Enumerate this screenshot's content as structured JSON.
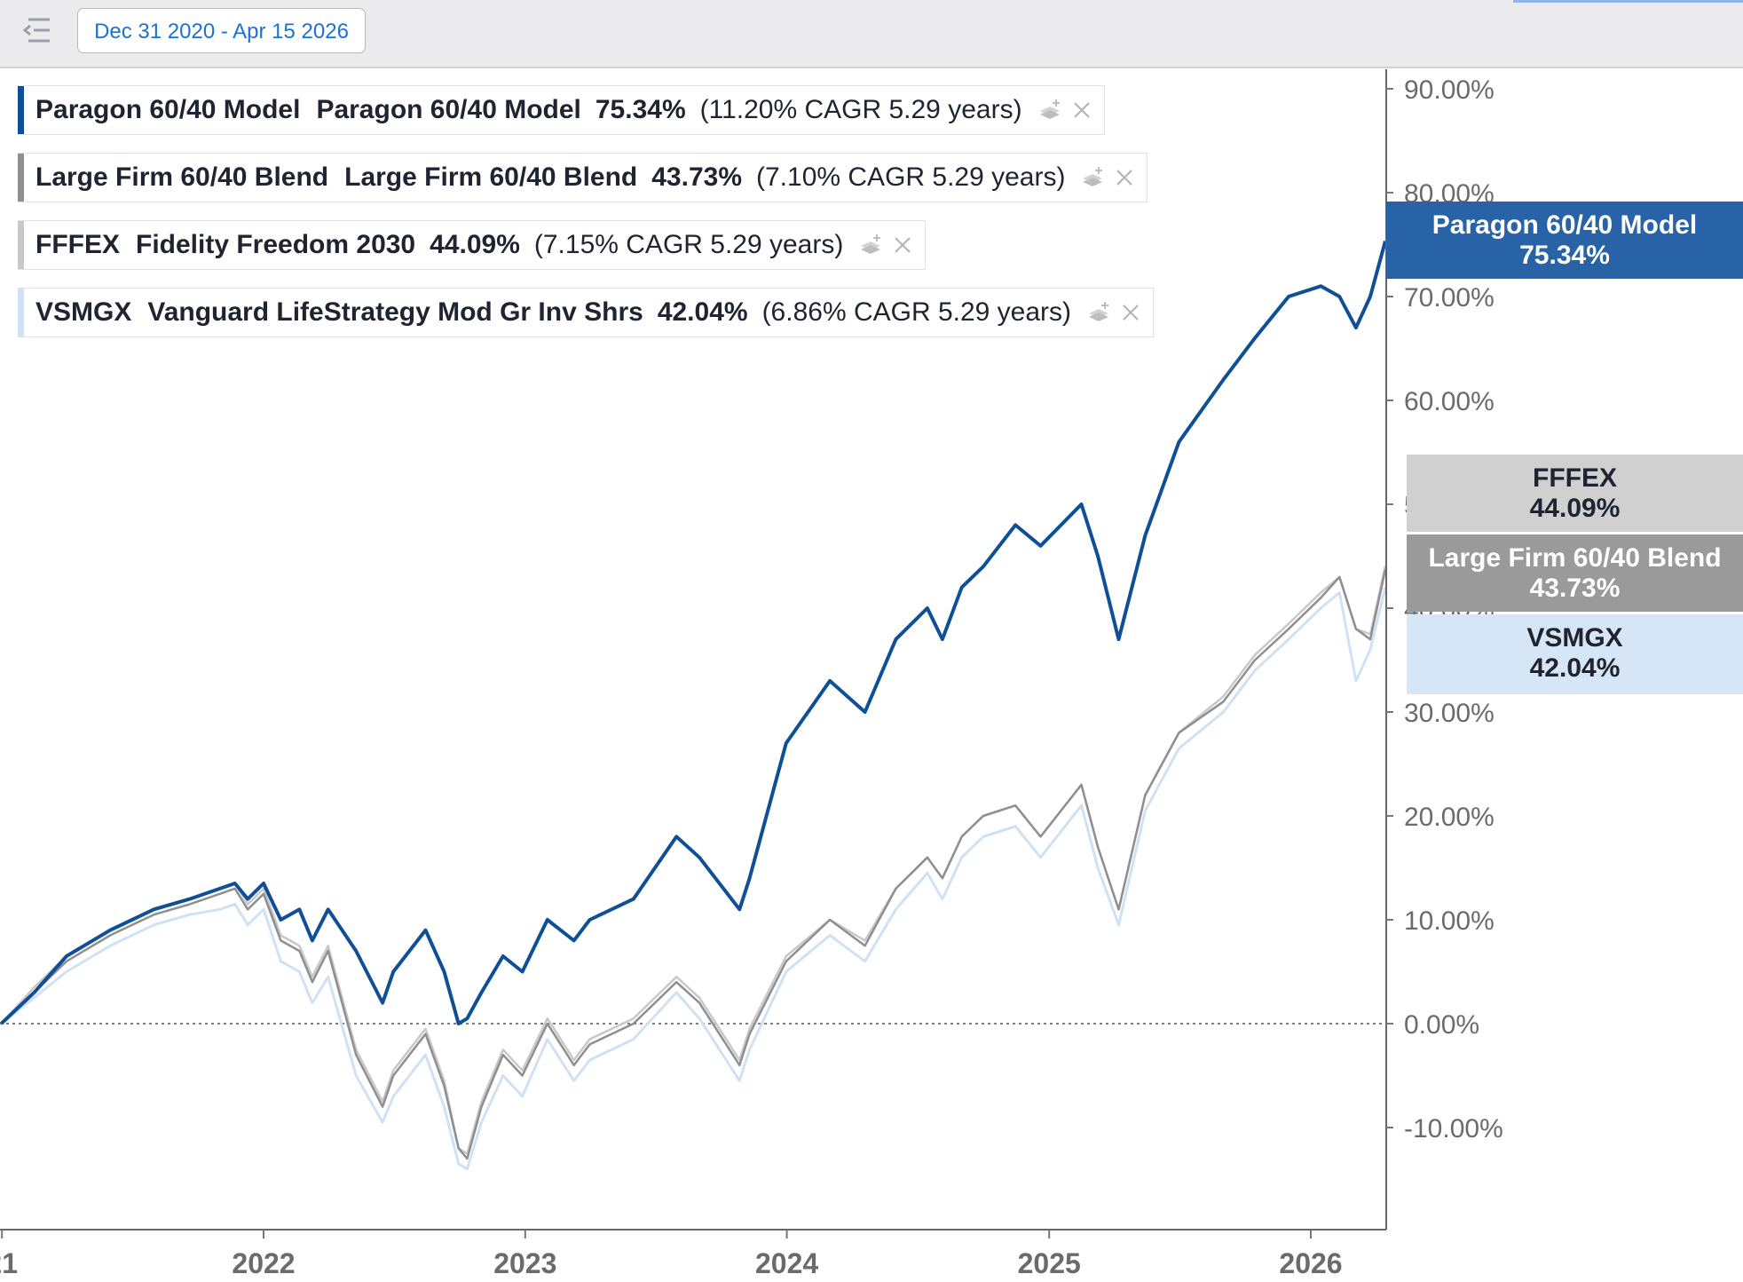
{
  "toolbar": {
    "date_range": "Dec 31 2020 - Apr 15 2026",
    "icons": [
      "list-collapse-icon"
    ]
  },
  "legend": [
    {
      "symbol": "Paragon 60/40 Model",
      "name": "Paragon 60/40 Model",
      "total": "75.34%",
      "cagr_text": "(11.20% CAGR 5.29 years)",
      "color": "#0f4f97"
    },
    {
      "symbol": "Large Firm 60/40 Blend",
      "name": "Large Firm 60/40 Blend",
      "total": "43.73%",
      "cagr_text": "(7.10% CAGR 5.29 years)",
      "color": "#8f8f8f"
    },
    {
      "symbol": "FFFEX",
      "name": "Fidelity Freedom 2030",
      "total": "44.09%",
      "cagr_text": "(7.15% CAGR 5.29 years)",
      "color": "#c8c8c8"
    },
    {
      "symbol": "VSMGX",
      "name": "Vanguard LifeStrategy Mod Gr Inv Shrs",
      "total": "42.04%",
      "cagr_text": "(6.86% CAGR 5.29 years)",
      "color": "#cfe2f5"
    }
  ],
  "chart_data": {
    "type": "line",
    "x_axis": {
      "type": "date",
      "range": [
        "2020-12-31",
        "2026-04-15"
      ],
      "tick_labels": [
        "21",
        "2022",
        "2023",
        "2024",
        "2025",
        "2026"
      ]
    },
    "y_axis": {
      "unit": "%",
      "range": [
        -20,
        90
      ],
      "ticks": [
        -10,
        0,
        10,
        20,
        30,
        40,
        50,
        60,
        70,
        80,
        90
      ],
      "tick_labels": [
        "-10.00%",
        "0.00%",
        "10.00%",
        "20.00%",
        "30.00%",
        "40.00%",
        "50.00%",
        "60.00%",
        "70.00%",
        "80.00%",
        "90.00%"
      ],
      "position": "right"
    },
    "zero_line": "dotted",
    "series": [
      {
        "name": "Paragon 60/40 Model",
        "color": "#0f4f97",
        "end_label": "75.34%",
        "points": [
          [
            "2020-12-31",
            0
          ],
          [
            "2021-02-15",
            3
          ],
          [
            "2021-04-01",
            6.5
          ],
          [
            "2021-06-01",
            9
          ],
          [
            "2021-08-01",
            11
          ],
          [
            "2021-09-20",
            12
          ],
          [
            "2021-11-01",
            13
          ],
          [
            "2021-11-22",
            13.5
          ],
          [
            "2021-12-10",
            12
          ],
          [
            "2022-01-01",
            13.5
          ],
          [
            "2022-01-25",
            10
          ],
          [
            "2022-02-20",
            11
          ],
          [
            "2022-03-10",
            8
          ],
          [
            "2022-04-01",
            11
          ],
          [
            "2022-05-10",
            7
          ],
          [
            "2022-06-16",
            2
          ],
          [
            "2022-07-01",
            5
          ],
          [
            "2022-08-15",
            9
          ],
          [
            "2022-09-10",
            5
          ],
          [
            "2022-09-30",
            0
          ],
          [
            "2022-10-12",
            0.5
          ],
          [
            "2022-11-01",
            3
          ],
          [
            "2022-12-01",
            6.5
          ],
          [
            "2022-12-28",
            5
          ],
          [
            "2023-02-01",
            10
          ],
          [
            "2023-03-10",
            8
          ],
          [
            "2023-04-01",
            10
          ],
          [
            "2023-06-01",
            12
          ],
          [
            "2023-07-31",
            18
          ],
          [
            "2023-09-01",
            16
          ],
          [
            "2023-10-27",
            11
          ],
          [
            "2023-11-10",
            14
          ],
          [
            "2023-12-31",
            27
          ],
          [
            "2024-03-01",
            33
          ],
          [
            "2024-04-19",
            30
          ],
          [
            "2024-06-01",
            37
          ],
          [
            "2024-07-15",
            40
          ],
          [
            "2024-08-05",
            37
          ],
          [
            "2024-09-01",
            42
          ],
          [
            "2024-10-01",
            44
          ],
          [
            "2024-11-15",
            48
          ],
          [
            "2024-12-20",
            46
          ],
          [
            "2025-02-15",
            50
          ],
          [
            "2025-03-10",
            45
          ],
          [
            "2025-04-08",
            37
          ],
          [
            "2025-05-15",
            47
          ],
          [
            "2025-07-01",
            56
          ],
          [
            "2025-09-01",
            62
          ],
          [
            "2025-10-15",
            66
          ],
          [
            "2025-12-01",
            70
          ],
          [
            "2026-01-15",
            71
          ],
          [
            "2026-02-10",
            70
          ],
          [
            "2026-03-05",
            67
          ],
          [
            "2026-03-25",
            70
          ],
          [
            "2026-04-15",
            75.34
          ]
        ]
      },
      {
        "name": "Large Firm 60/40 Blend",
        "color": "#8f8f8f",
        "end_label": "43.73%",
        "points": [
          [
            "2020-12-31",
            0
          ],
          [
            "2021-02-15",
            3
          ],
          [
            "2021-04-01",
            6
          ],
          [
            "2021-06-01",
            8.5
          ],
          [
            "2021-08-01",
            10.5
          ],
          [
            "2021-09-20",
            11.5
          ],
          [
            "2021-11-01",
            12.5
          ],
          [
            "2021-11-22",
            13
          ],
          [
            "2021-12-10",
            11
          ],
          [
            "2022-01-01",
            12.5
          ],
          [
            "2022-01-25",
            8
          ],
          [
            "2022-02-20",
            7
          ],
          [
            "2022-03-10",
            4
          ],
          [
            "2022-04-01",
            7
          ],
          [
            "2022-05-10",
            -3
          ],
          [
            "2022-06-16",
            -8
          ],
          [
            "2022-07-01",
            -5
          ],
          [
            "2022-08-15",
            -1
          ],
          [
            "2022-09-10",
            -6
          ],
          [
            "2022-09-30",
            -12
          ],
          [
            "2022-10-12",
            -13
          ],
          [
            "2022-11-01",
            -8
          ],
          [
            "2022-12-01",
            -3
          ],
          [
            "2022-12-28",
            -5
          ],
          [
            "2023-02-01",
            0
          ],
          [
            "2023-03-10",
            -4
          ],
          [
            "2023-04-01",
            -2
          ],
          [
            "2023-06-01",
            0
          ],
          [
            "2023-07-31",
            4
          ],
          [
            "2023-09-01",
            2
          ],
          [
            "2023-10-27",
            -4
          ],
          [
            "2023-11-10",
            -1
          ],
          [
            "2023-12-31",
            6
          ],
          [
            "2024-03-01",
            10
          ],
          [
            "2024-04-19",
            7.5
          ],
          [
            "2024-06-01",
            13
          ],
          [
            "2024-07-15",
            16
          ],
          [
            "2024-08-05",
            14
          ],
          [
            "2024-09-01",
            18
          ],
          [
            "2024-10-01",
            20
          ],
          [
            "2024-11-15",
            21
          ],
          [
            "2024-12-20",
            18
          ],
          [
            "2025-02-15",
            23
          ],
          [
            "2025-03-10",
            17
          ],
          [
            "2025-04-08",
            11
          ],
          [
            "2025-05-15",
            22
          ],
          [
            "2025-07-01",
            28
          ],
          [
            "2025-09-01",
            31
          ],
          [
            "2025-10-15",
            35
          ],
          [
            "2025-12-01",
            38
          ],
          [
            "2026-01-15",
            41
          ],
          [
            "2026-02-10",
            43
          ],
          [
            "2026-03-05",
            38
          ],
          [
            "2026-03-25",
            37
          ],
          [
            "2026-04-15",
            43.73
          ]
        ]
      },
      {
        "name": "FFFEX",
        "color": "#c8c8c8",
        "end_label": "44.09%",
        "points": [
          [
            "2020-12-31",
            0
          ],
          [
            "2021-02-15",
            3.5
          ],
          [
            "2021-04-01",
            6.5
          ],
          [
            "2021-06-01",
            9
          ],
          [
            "2021-08-01",
            11
          ],
          [
            "2021-09-20",
            12
          ],
          [
            "2021-11-01",
            13
          ],
          [
            "2021-11-22",
            13.5
          ],
          [
            "2021-12-10",
            11.5
          ],
          [
            "2022-01-01",
            13
          ],
          [
            "2022-01-25",
            8.5
          ],
          [
            "2022-02-20",
            7.5
          ],
          [
            "2022-03-10",
            4.5
          ],
          [
            "2022-04-01",
            7.5
          ],
          [
            "2022-05-10",
            -2.5
          ],
          [
            "2022-06-16",
            -7.5
          ],
          [
            "2022-07-01",
            -4.5
          ],
          [
            "2022-08-15",
            -0.5
          ],
          [
            "2022-09-10",
            -5.5
          ],
          [
            "2022-09-30",
            -12
          ],
          [
            "2022-10-12",
            -12.5
          ],
          [
            "2022-11-01",
            -7.5
          ],
          [
            "2022-12-01",
            -2.5
          ],
          [
            "2022-12-28",
            -4.5
          ],
          [
            "2023-02-01",
            0.5
          ],
          [
            "2023-03-10",
            -3.5
          ],
          [
            "2023-04-01",
            -1.5
          ],
          [
            "2023-06-01",
            0.5
          ],
          [
            "2023-07-31",
            4.5
          ],
          [
            "2023-09-01",
            2.5
          ],
          [
            "2023-10-27",
            -3.5
          ],
          [
            "2023-11-10",
            -0.5
          ],
          [
            "2023-12-31",
            6.5
          ],
          [
            "2024-03-01",
            10
          ],
          [
            "2024-04-19",
            8
          ],
          [
            "2024-06-01",
            13
          ],
          [
            "2024-07-15",
            16
          ],
          [
            "2024-08-05",
            14
          ],
          [
            "2024-09-01",
            18
          ],
          [
            "2024-10-01",
            20
          ],
          [
            "2024-11-15",
            21
          ],
          [
            "2024-12-20",
            18
          ],
          [
            "2025-02-15",
            23
          ],
          [
            "2025-03-10",
            17
          ],
          [
            "2025-04-08",
            11
          ],
          [
            "2025-05-15",
            22
          ],
          [
            "2025-07-01",
            28
          ],
          [
            "2025-09-01",
            31.5
          ],
          [
            "2025-10-15",
            35.5
          ],
          [
            "2025-12-01",
            38.5
          ],
          [
            "2026-01-15",
            41.5
          ],
          [
            "2026-02-10",
            43
          ],
          [
            "2026-03-05",
            38
          ],
          [
            "2026-03-25",
            37.5
          ],
          [
            "2026-04-15",
            44.09
          ]
        ]
      },
      {
        "name": "VSMGX",
        "color": "#cfe2f5",
        "end_label": "42.04%",
        "points": [
          [
            "2020-12-31",
            0
          ],
          [
            "2021-02-15",
            2.5
          ],
          [
            "2021-04-01",
            5
          ],
          [
            "2021-06-01",
            7.5
          ],
          [
            "2021-08-01",
            9.5
          ],
          [
            "2021-09-20",
            10.5
          ],
          [
            "2021-11-01",
            11
          ],
          [
            "2021-11-22",
            11.5
          ],
          [
            "2021-12-10",
            9.5
          ],
          [
            "2022-01-01",
            11
          ],
          [
            "2022-01-25",
            6
          ],
          [
            "2022-02-20",
            5
          ],
          [
            "2022-03-10",
            2
          ],
          [
            "2022-04-01",
            4.5
          ],
          [
            "2022-05-10",
            -5
          ],
          [
            "2022-06-16",
            -9.5
          ],
          [
            "2022-07-01",
            -7
          ],
          [
            "2022-08-15",
            -3
          ],
          [
            "2022-09-10",
            -8
          ],
          [
            "2022-09-30",
            -13.5
          ],
          [
            "2022-10-12",
            -14
          ],
          [
            "2022-11-01",
            -9.5
          ],
          [
            "2022-12-01",
            -5
          ],
          [
            "2022-12-28",
            -7
          ],
          [
            "2023-02-01",
            -1.5
          ],
          [
            "2023-03-10",
            -5.5
          ],
          [
            "2023-04-01",
            -3.5
          ],
          [
            "2023-06-01",
            -1.5
          ],
          [
            "2023-07-31",
            3
          ],
          [
            "2023-09-01",
            0.5
          ],
          [
            "2023-10-27",
            -5.5
          ],
          [
            "2023-11-10",
            -2.5
          ],
          [
            "2023-12-31",
            5
          ],
          [
            "2024-03-01",
            8.5
          ],
          [
            "2024-04-19",
            6
          ],
          [
            "2024-06-01",
            11
          ],
          [
            "2024-07-15",
            14.5
          ],
          [
            "2024-08-05",
            12
          ],
          [
            "2024-09-01",
            16
          ],
          [
            "2024-10-01",
            18
          ],
          [
            "2024-11-15",
            19
          ],
          [
            "2024-12-20",
            16
          ],
          [
            "2025-02-15",
            21
          ],
          [
            "2025-03-10",
            15
          ],
          [
            "2025-04-08",
            9.5
          ],
          [
            "2025-05-15",
            20.5
          ],
          [
            "2025-07-01",
            26.5
          ],
          [
            "2025-09-01",
            30
          ],
          [
            "2025-10-15",
            34
          ],
          [
            "2025-12-01",
            37
          ],
          [
            "2026-01-15",
            40
          ],
          [
            "2026-02-10",
            41.5
          ],
          [
            "2026-03-05",
            33
          ],
          [
            "2026-03-25",
            36
          ],
          [
            "2026-04-15",
            42.04
          ]
        ]
      }
    ],
    "end_labels": [
      {
        "title": "Paragon 60/40 Model",
        "value": "75.34%",
        "bg": "#2763a6",
        "fg": "#ffffff"
      },
      {
        "title": "FFFEX",
        "value": "44.09%",
        "bg": "#d0d0d0",
        "fg": "#1f2430"
      },
      {
        "title": "Large Firm 60/40 Blend",
        "value": "43.73%",
        "bg": "#9a9a9a",
        "fg": "#ffffff"
      },
      {
        "title": "VSMGX",
        "value": "42.04%",
        "bg": "#d6e6f6",
        "fg": "#1f2430"
      }
    ]
  }
}
